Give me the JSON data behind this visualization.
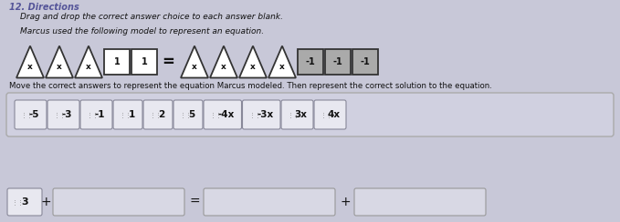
{
  "title": "12. Directions",
  "line1": "Drag and drop the correct answer choice to each answer blank.",
  "line2": "Marcus used the following model to represent an equation.",
  "line3": "Move the correct answers to represent the equation Marcus modeled. Then represent the correct solution to the equation.",
  "bg_color": "#c8c8d8",
  "text_color": "#111111",
  "title_color": "#555599",
  "left_tiles": [
    {
      "type": "triangle",
      "label": "x"
    },
    {
      "type": "triangle",
      "label": "x"
    },
    {
      "type": "triangle",
      "label": "x"
    },
    {
      "type": "rect",
      "label": "1"
    },
    {
      "type": "rect",
      "label": "1"
    }
  ],
  "right_tiles": [
    {
      "type": "triangle",
      "label": "x"
    },
    {
      "type": "triangle",
      "label": "x"
    },
    {
      "type": "triangle",
      "label": "x"
    },
    {
      "type": "triangle",
      "label": "x"
    },
    {
      "type": "dark_rect",
      "label": "-1"
    },
    {
      "type": "dark_rect",
      "label": "-1"
    },
    {
      "type": "dark_rect",
      "label": "-1"
    }
  ],
  "chips": [
    "-5",
    "-3",
    "-1",
    "1",
    "2",
    "5",
    "-4x",
    "-3x",
    "3x",
    "4x"
  ],
  "bottom_fixed": "3",
  "chip_panel_bg": "#d0d0e0",
  "chip_bg": "#e8e8f0",
  "chip_border": "#888899",
  "blank_bg": "#d8d8e4",
  "blank_border": "#999999"
}
